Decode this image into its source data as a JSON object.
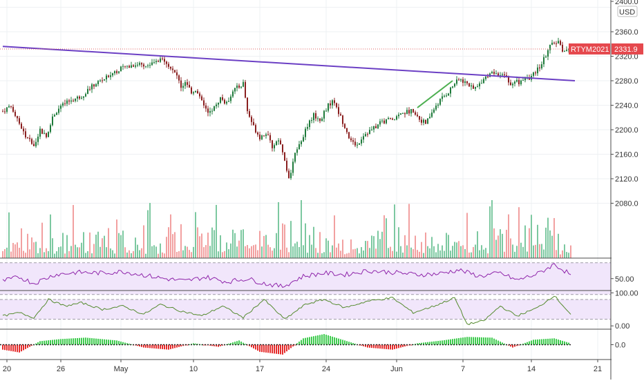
{
  "chart_data": [
    {
      "type": "candlestick",
      "symbol": "RTYM2021",
      "last_price": "2331.9",
      "currency": "USD",
      "y_ticks": [
        "2400.0",
        "2360.0",
        "2320.0",
        "2280.0",
        "2240.0",
        "2200.0",
        "2160.0",
        "2120.0",
        "2080.0"
      ],
      "ylim": [
        2068,
        2402
      ],
      "x_ticks": [
        "20",
        "26",
        "May",
        "10",
        "17",
        "24",
        "Jun",
        "7",
        "14",
        "21"
      ],
      "ohlc_path": [
        [
          0,
          2230
        ],
        [
          3,
          2238
        ],
        [
          7,
          2220
        ],
        [
          11,
          2188
        ],
        [
          15,
          2175
        ],
        [
          18,
          2200
        ],
        [
          21,
          2188
        ],
        [
          24,
          2222
        ],
        [
          28,
          2238
        ],
        [
          33,
          2248
        ],
        [
          38,
          2255
        ],
        [
          42,
          2268
        ],
        [
          46,
          2278
        ],
        [
          50,
          2285
        ],
        [
          54,
          2295
        ],
        [
          58,
          2302
        ],
        [
          62,
          2305
        ],
        [
          66,
          2308
        ],
        [
          70,
          2305
        ],
        [
          74,
          2310
        ],
        [
          78,
          2315
        ],
        [
          81,
          2300
        ],
        [
          84,
          2288
        ],
        [
          86,
          2270
        ],
        [
          88,
          2276
        ],
        [
          91,
          2262
        ],
        [
          93,
          2266
        ],
        [
          96,
          2250
        ],
        [
          99,
          2226
        ],
        [
          102,
          2236
        ],
        [
          105,
          2252
        ],
        [
          108,
          2242
        ],
        [
          111,
          2265
        ],
        [
          114,
          2270
        ],
        [
          116,
          2276
        ],
        [
          118,
          2230
        ],
        [
          121,
          2205
        ],
        [
          124,
          2188
        ],
        [
          127,
          2195
        ],
        [
          130,
          2172
        ],
        [
          133,
          2185
        ],
        [
          136,
          2150
        ],
        [
          138,
          2118
        ],
        [
          140,
          2145
        ],
        [
          142,
          2172
        ],
        [
          144,
          2185
        ],
        [
          147,
          2205
        ],
        [
          150,
          2225
        ],
        [
          153,
          2215
        ],
        [
          156,
          2235
        ],
        [
          159,
          2248
        ],
        [
          162,
          2228
        ],
        [
          165,
          2206
        ],
        [
          168,
          2180
        ],
        [
          171,
          2175
        ],
        [
          174,
          2192
        ],
        [
          178,
          2200
        ],
        [
          182,
          2210
        ],
        [
          186,
          2216
        ],
        [
          190,
          2222
        ],
        [
          194,
          2228
        ],
        [
          198,
          2232
        ],
        [
          201,
          2218
        ],
        [
          204,
          2210
        ],
        [
          206,
          2222
        ],
        [
          209,
          2240
        ],
        [
          212,
          2252
        ],
        [
          215,
          2262
        ],
        [
          218,
          2276
        ],
        [
          221,
          2282
        ],
        [
          224,
          2275
        ],
        [
          227,
          2266
        ],
        [
          229,
          2270
        ],
        [
          232,
          2285
        ],
        [
          235,
          2290
        ],
        [
          238,
          2292
        ],
        [
          240,
          2286
        ],
        [
          243,
          2290
        ],
        [
          245,
          2270
        ],
        [
          247,
          2278
        ],
        [
          249,
          2278
        ],
        [
          251,
          2280
        ],
        [
          253,
          2285
        ],
        [
          255,
          2285
        ],
        [
          257,
          2294
        ],
        [
          260,
          2308
        ],
        [
          262,
          2322
        ],
        [
          265,
          2342
        ],
        [
          268,
          2344
        ],
        [
          270,
          2330
        ],
        [
          272,
          2328
        ],
        [
          274,
          2333
        ]
      ],
      "volume_path": [
        [
          0,
          0.42
        ],
        [
          40,
          0.5
        ],
        [
          60,
          0.45
        ],
        [
          80,
          0.55
        ],
        [
          120,
          0.6
        ],
        [
          140,
          0.7
        ],
        [
          160,
          0.45
        ],
        [
          200,
          0.5
        ],
        [
          240,
          0.55
        ],
        [
          250,
          0.7
        ],
        [
          260,
          0.6
        ],
        [
          274,
          0.25
        ]
      ],
      "annotations": [
        {
          "type": "trendline",
          "color": "#6b3fc4",
          "from": [
            0,
            2336
          ],
          "to": [
            276,
            2280
          ]
        },
        {
          "type": "trendline",
          "color": "#4caf50",
          "from": [
            200,
            2236
          ],
          "to": [
            217,
            2280
          ]
        }
      ]
    },
    {
      "type": "line",
      "panel": "rsi",
      "y_ticks": [
        "50.00"
      ],
      "ylim": [
        35,
        75
      ],
      "band": [
        30,
        70
      ],
      "color": "#8e24aa",
      "x": [
        0,
        8,
        15,
        25,
        36,
        48,
        58,
        67,
        78,
        88,
        98,
        108,
        118,
        126,
        135,
        145,
        155,
        165,
        176,
        188,
        200,
        210,
        220,
        230,
        240,
        248,
        258,
        266,
        274
      ],
      "y": [
        47,
        52,
        44,
        55,
        58,
        57,
        59,
        55,
        50,
        47,
        52,
        46,
        50,
        44,
        40,
        53,
        57,
        55,
        60,
        58,
        55,
        56,
        61,
        53,
        57,
        48,
        56,
        68,
        55
      ]
    },
    {
      "type": "line",
      "panel": "stoch",
      "y_ticks": [
        "100.00",
        "0.00"
      ],
      "ylim": [
        -10,
        105
      ],
      "band": [
        20,
        80
      ],
      "color": "#558b2f",
      "x": [
        0,
        8,
        15,
        22,
        30,
        38,
        48,
        58,
        68,
        76,
        86,
        96,
        106,
        116,
        126,
        136,
        146,
        155,
        165,
        176,
        188,
        198,
        208,
        218,
        224,
        232,
        240,
        248,
        258,
        266,
        274
      ],
      "y": [
        30,
        40,
        25,
        80,
        60,
        70,
        50,
        60,
        35,
        65,
        45,
        30,
        60,
        25,
        80,
        20,
        65,
        80,
        55,
        75,
        85,
        40,
        60,
        85,
        5,
        15,
        60,
        30,
        55,
        92,
        35
      ]
    },
    {
      "type": "bar",
      "panel": "momentum",
      "y_ticks": [
        "0.0"
      ],
      "ylim": [
        -1,
        1
      ],
      "x": [
        0,
        8,
        18,
        28,
        40,
        55,
        68,
        80,
        92,
        104,
        114,
        124,
        135,
        145,
        155,
        165,
        176,
        188,
        200,
        212,
        224,
        236,
        246,
        256,
        266,
        274
      ],
      "values": [
        -0.35,
        -0.55,
        0.25,
        0.4,
        0.5,
        0.3,
        -0.2,
        -0.35,
        0.1,
        -0.15,
        0.3,
        -0.5,
        -0.7,
        0.45,
        0.75,
        0.3,
        -0.2,
        -0.35,
        0.1,
        0.3,
        0.55,
        0.5,
        -0.2,
        0.35,
        0.45,
        0.1
      ]
    }
  ]
}
